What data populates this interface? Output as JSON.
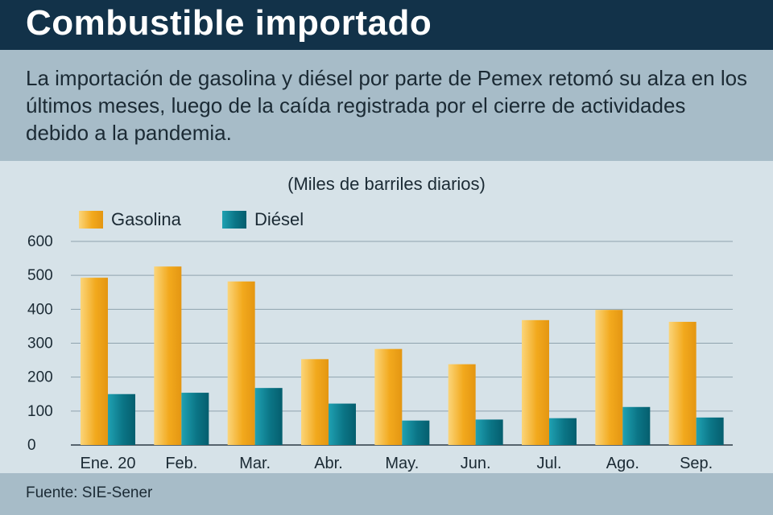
{
  "header": {
    "title": "Combustible importado"
  },
  "subtitle": "La importación de gasolina y diésel por parte de Pemex retomó su alza en los últimos meses, luego de la caída registrada por el cierre de actividades debido a la pandemia.",
  "source": "Fuente: SIE-Sener",
  "colors": {
    "header_bg": "#123249",
    "gasolina": "#f2a91d",
    "diesel": "#0b7586"
  },
  "chart_data": {
    "type": "bar",
    "title": "Combustible importado",
    "ylabel": "(Miles de barriles diarios)",
    "xlabel": "",
    "categories": [
      "Ene. 20",
      "Feb.",
      "Mar.",
      "Abr.",
      "May.",
      "Jun.",
      "Jul.",
      "Ago.",
      "Sep."
    ],
    "series": [
      {
        "name": "Gasolina",
        "values": [
          493,
          526,
          482,
          253,
          283,
          238,
          368,
          398,
          363
        ]
      },
      {
        "name": "Diésel",
        "values": [
          150,
          154,
          168,
          122,
          72,
          75,
          79,
          112,
          81
        ]
      }
    ],
    "ylim": [
      0,
      600
    ],
    "yticks": [
      "0",
      "100",
      "200",
      "300",
      "400",
      "500",
      "600"
    ],
    "grid": true,
    "legend": "top-left"
  }
}
